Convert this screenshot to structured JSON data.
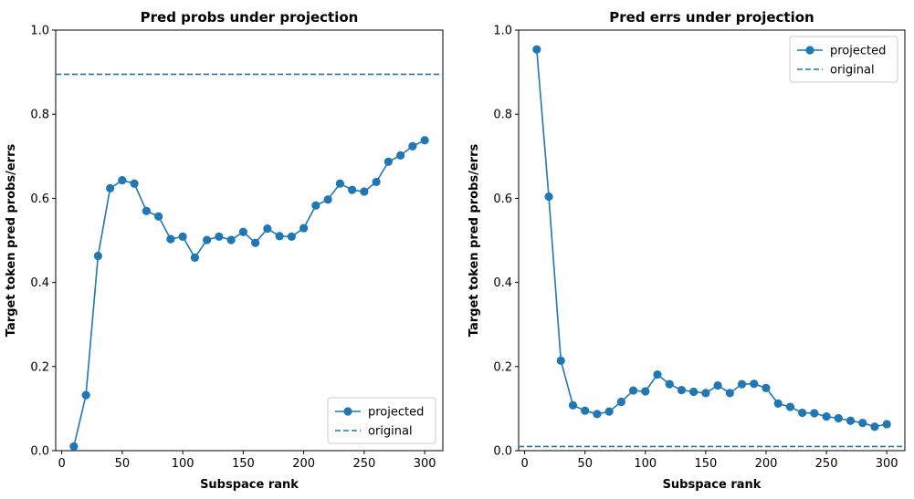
{
  "chart_data": [
    {
      "type": "line",
      "title": "Pred probs under projection",
      "xlabel": "Subspace rank",
      "ylabel": "Target token pred probs/errs",
      "xlim": [
        -5,
        315
      ],
      "ylim": [
        0,
        1.0
      ],
      "xticks": [
        0,
        50,
        100,
        150,
        200,
        250,
        300
      ],
      "yticks": [
        0.0,
        0.2,
        0.4,
        0.6,
        0.8,
        1.0
      ],
      "x": [
        10,
        20,
        30,
        40,
        50,
        60,
        70,
        80,
        90,
        100,
        110,
        120,
        130,
        140,
        150,
        160,
        170,
        180,
        190,
        200,
        210,
        220,
        230,
        240,
        250,
        260,
        270,
        280,
        290,
        300
      ],
      "series": [
        {
          "name": "projected",
          "style": "solid-marker",
          "color": "#1f77b4",
          "values": [
            0.01,
            0.132,
            0.463,
            0.624,
            0.643,
            0.635,
            0.57,
            0.557,
            0.503,
            0.509,
            0.459,
            0.501,
            0.509,
            0.501,
            0.52,
            0.494,
            0.528,
            0.51,
            0.509,
            0.529,
            0.583,
            0.597,
            0.635,
            0.62,
            0.616,
            0.639,
            0.687,
            0.702,
            0.724,
            0.738
          ]
        },
        {
          "name": "original",
          "style": "dashed-hline",
          "color": "#1f77b4",
          "value": 0.895
        }
      ],
      "legend_position": "lower-right"
    },
    {
      "type": "line",
      "title": "Pred errs under projection",
      "xlabel": "Subspace rank",
      "ylabel": "Target token pred probs/errs",
      "xlim": [
        -5,
        315
      ],
      "ylim": [
        0,
        1.0
      ],
      "xticks": [
        0,
        50,
        100,
        150,
        200,
        250,
        300
      ],
      "yticks": [
        0.0,
        0.2,
        0.4,
        0.6,
        0.8,
        1.0
      ],
      "x": [
        10,
        20,
        30,
        40,
        50,
        60,
        70,
        80,
        90,
        100,
        110,
        120,
        130,
        140,
        150,
        160,
        170,
        180,
        190,
        200,
        210,
        220,
        230,
        240,
        250,
        260,
        270,
        280,
        290,
        300
      ],
      "series": [
        {
          "name": "projected",
          "style": "solid-marker",
          "color": "#1f77b4",
          "values": [
            0.954,
            0.604,
            0.214,
            0.108,
            0.095,
            0.087,
            0.093,
            0.116,
            0.143,
            0.141,
            0.181,
            0.158,
            0.144,
            0.14,
            0.137,
            0.155,
            0.137,
            0.158,
            0.159,
            0.149,
            0.112,
            0.104,
            0.09,
            0.089,
            0.081,
            0.077,
            0.071,
            0.066,
            0.057,
            0.063
          ]
        },
        {
          "name": "original",
          "style": "dashed-hline",
          "color": "#1f77b4",
          "value": 0.01
        }
      ],
      "legend_position": "upper-right"
    }
  ]
}
